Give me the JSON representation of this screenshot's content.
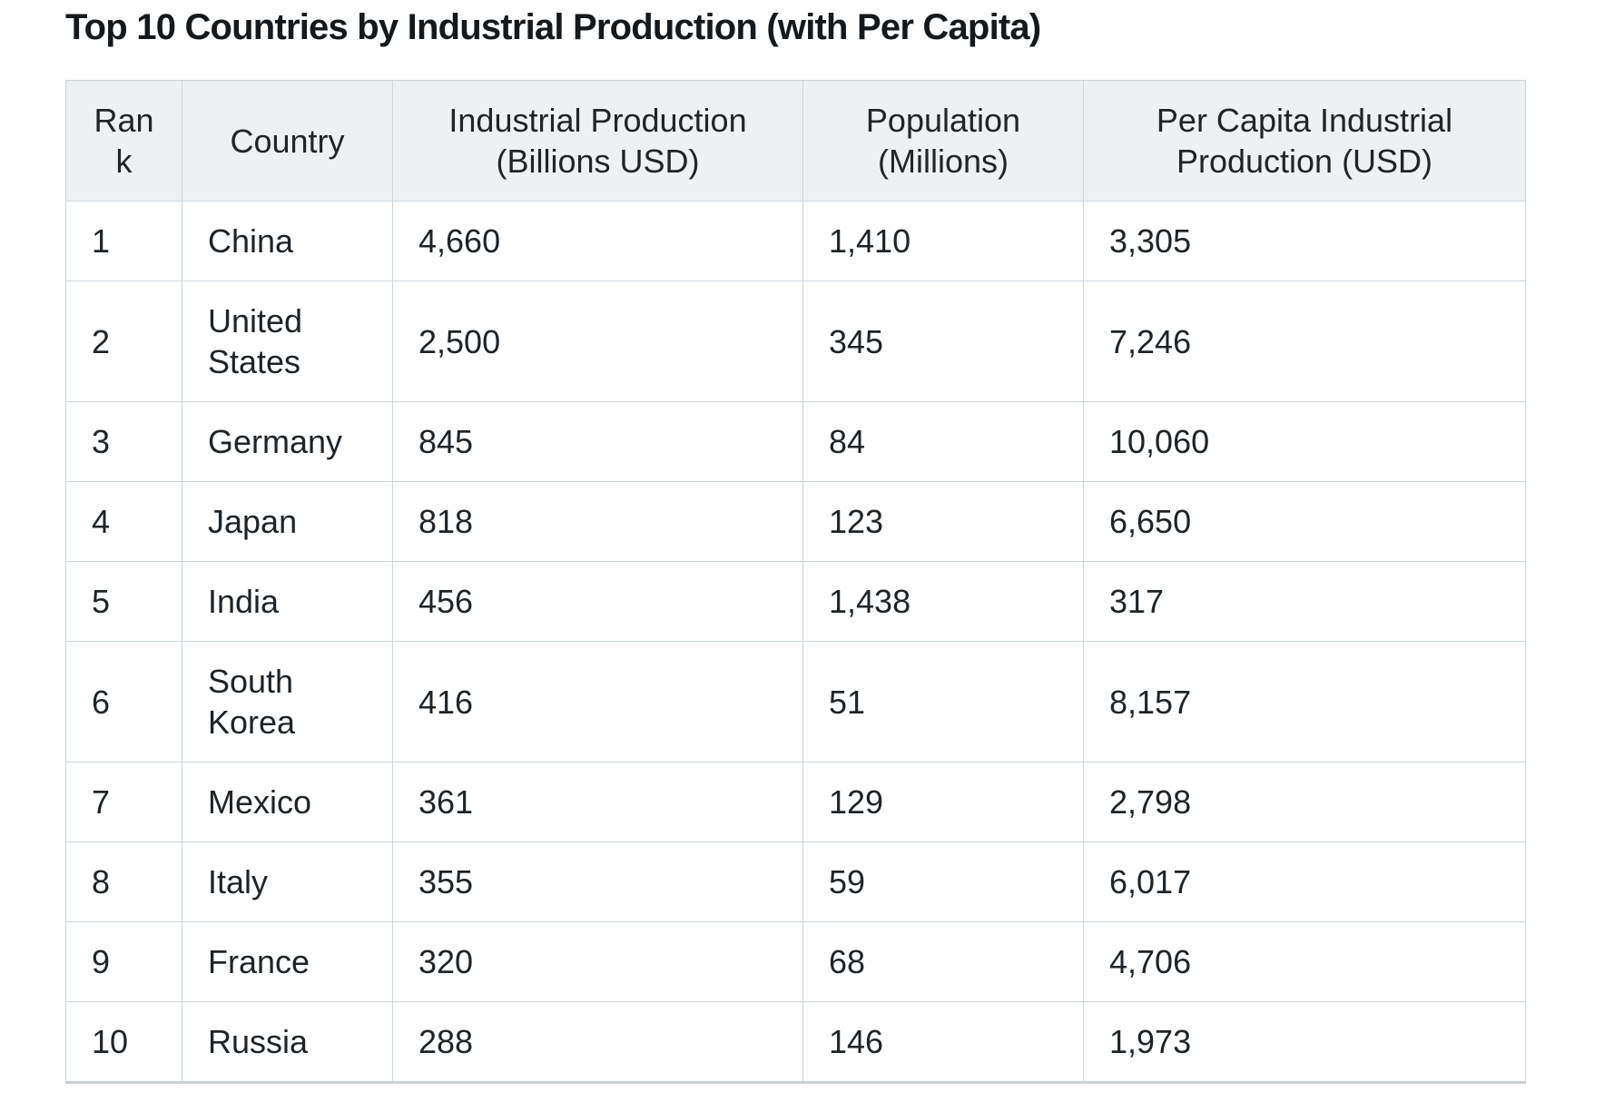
{
  "page": {
    "title": "Top 10 Countries by Industrial Production (with Per Capita)"
  },
  "colors": {
    "header_background": "#eef1f2",
    "border": "#ccd6dc",
    "bottom_border": "#c7d2da",
    "text": "#1f2428",
    "title_text": "#16191c",
    "page_background": "#ffffff"
  },
  "table": {
    "columns": [
      "Rank",
      "Country",
      "Industrial Production (Billions USD)",
      "Population (Millions)",
      "Per Capita Industrial Production (USD)"
    ],
    "rows": [
      {
        "rank": "1",
        "country": "China",
        "industrial_production": "4,660",
        "population": "1,410",
        "per_capita": "3,305"
      },
      {
        "rank": "2",
        "country": "United States",
        "industrial_production": "2,500",
        "population": "345",
        "per_capita": "7,246"
      },
      {
        "rank": "3",
        "country": "Germany",
        "industrial_production": "845",
        "population": "84",
        "per_capita": "10,060"
      },
      {
        "rank": "4",
        "country": "Japan",
        "industrial_production": "818",
        "population": "123",
        "per_capita": "6,650"
      },
      {
        "rank": "5",
        "country": "India",
        "industrial_production": "456",
        "population": "1,438",
        "per_capita": "317"
      },
      {
        "rank": "6",
        "country": "South Korea",
        "industrial_production": "416",
        "population": "51",
        "per_capita": "8,157"
      },
      {
        "rank": "7",
        "country": "Mexico",
        "industrial_production": "361",
        "population": "129",
        "per_capita": "2,798"
      },
      {
        "rank": "8",
        "country": "Italy",
        "industrial_production": "355",
        "population": "59",
        "per_capita": "6,017"
      },
      {
        "rank": "9",
        "country": "France",
        "industrial_production": "320",
        "population": "68",
        "per_capita": "4,706"
      },
      {
        "rank": "10",
        "country": "Russia",
        "industrial_production": "288",
        "population": "146",
        "per_capita": "1,973"
      }
    ]
  }
}
